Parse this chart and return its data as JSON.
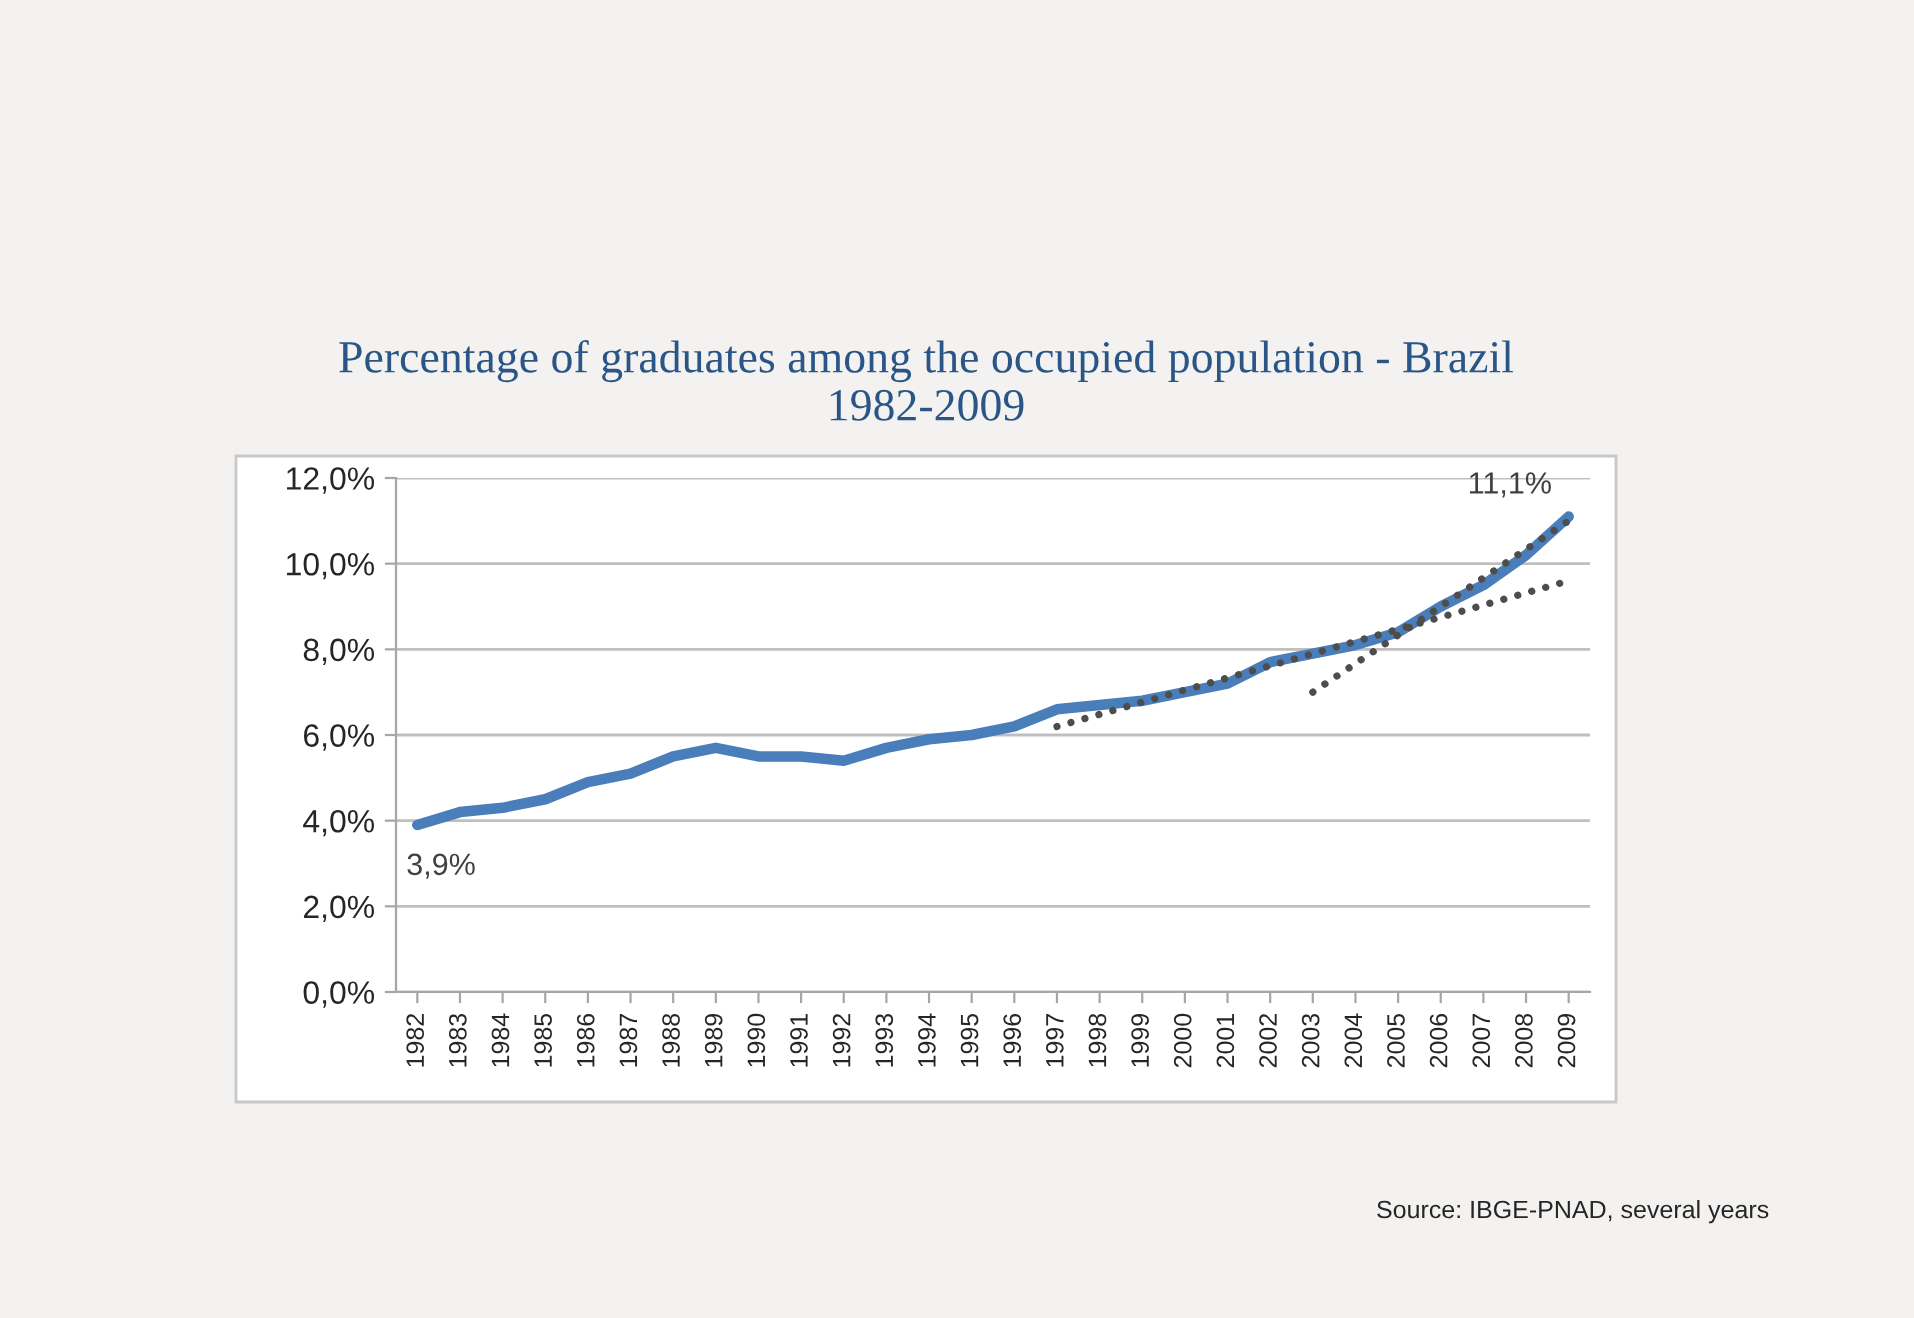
{
  "chart_data": {
    "type": "line",
    "title": "Percentage of graduates among the occupied population - Brazil\n1982-2009",
    "x": [
      1982,
      1983,
      1984,
      1985,
      1986,
      1987,
      1988,
      1989,
      1990,
      1991,
      1992,
      1993,
      1994,
      1995,
      1996,
      1997,
      1998,
      1999,
      2000,
      2001,
      2002,
      2003,
      2004,
      2005,
      2006,
      2007,
      2008,
      2009
    ],
    "xlim": [
      1981.5,
      2009.5
    ],
    "xticks": [
      1982,
      1983,
      1984,
      1985,
      1986,
      1987,
      1988,
      1989,
      1990,
      1991,
      1992,
      1993,
      1994,
      1995,
      1996,
      1997,
      1998,
      1999,
      2000,
      2001,
      2002,
      2003,
      2004,
      2005,
      2006,
      2007,
      2008,
      2009
    ],
    "ylim": [
      0,
      12
    ],
    "yticks": [
      {
        "value": 0,
        "label": "0,0%"
      },
      {
        "value": 2,
        "label": "2,0%"
      },
      {
        "value": 4,
        "label": "4,0%"
      },
      {
        "value": 6,
        "label": "6,0%"
      },
      {
        "value": 8,
        "label": "8,0%"
      },
      {
        "value": 10,
        "label": "10,0%"
      },
      {
        "value": 12,
        "label": "12,0%"
      }
    ],
    "series": [
      {
        "color": "#4a7ebb",
        "values": [
          3.9,
          4.2,
          4.3,
          4.5,
          4.9,
          5.1,
          5.5,
          5.7,
          5.5,
          5.5,
          5.4,
          5.7,
          5.9,
          6.0,
          6.2,
          6.6,
          6.7,
          6.8,
          7.0,
          7.2,
          7.7,
          7.9,
          8.1,
          8.4,
          9.0,
          9.5,
          10.2,
          11.1
        ],
        "value_labels": [
          "3,9%",
          null,
          null,
          null,
          null,
          null,
          null,
          null,
          null,
          null,
          null,
          null,
          null,
          null,
          null,
          null,
          null,
          null,
          null,
          null,
          null,
          null,
          null,
          null,
          null,
          null,
          null,
          "11,1%"
        ]
      },
      {
        "type": "line",
        "color": "#4d4d4d",
        "line_style": "dotted",
        "x": [
          1997,
          2009
        ],
        "values": [
          6.2,
          9.6
        ]
      },
      {
        "type": "line",
        "color": "#4d4d4d",
        "line_style": "dotted",
        "x": [
          2003,
          2009
        ],
        "values": [
          7.0,
          11.0
        ]
      }
    ],
    "annotations": [
      "Source: IBGE-PNAD, several years"
    ],
    "grid": "y",
    "legend": false,
    "marker": "none",
    "line_style": "solid"
  }
}
